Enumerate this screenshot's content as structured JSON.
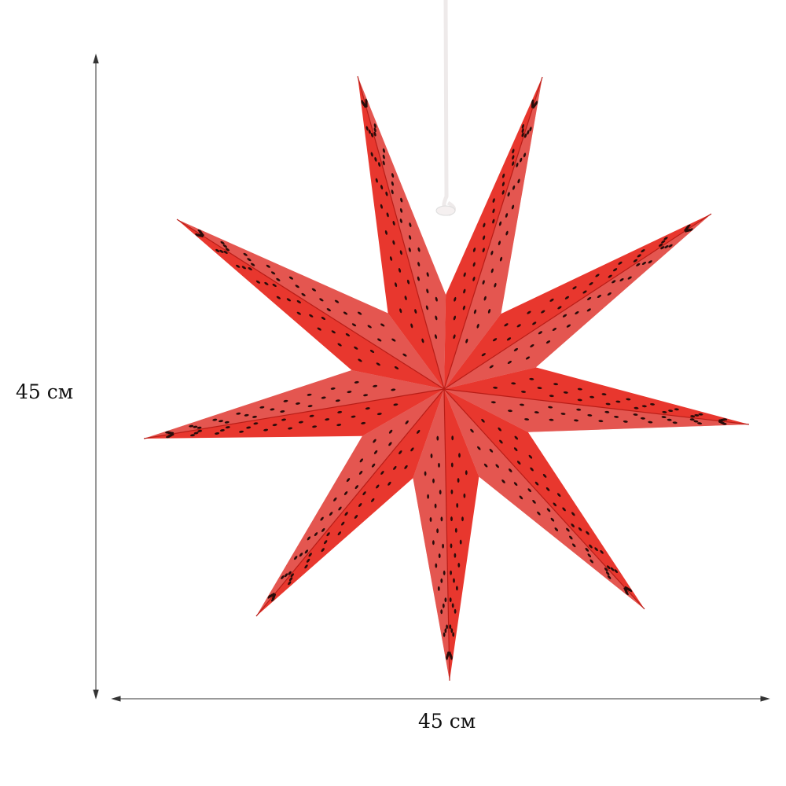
{
  "product": {
    "height_label": "45 см",
    "width_label": "45 см",
    "star_points": 9,
    "colors": {
      "star": "#e8372e",
      "star_dark": "#c2231d",
      "holes": "#2a0c0a",
      "cord": "#f3f0f0",
      "dimension_lines": "#333333"
    }
  }
}
